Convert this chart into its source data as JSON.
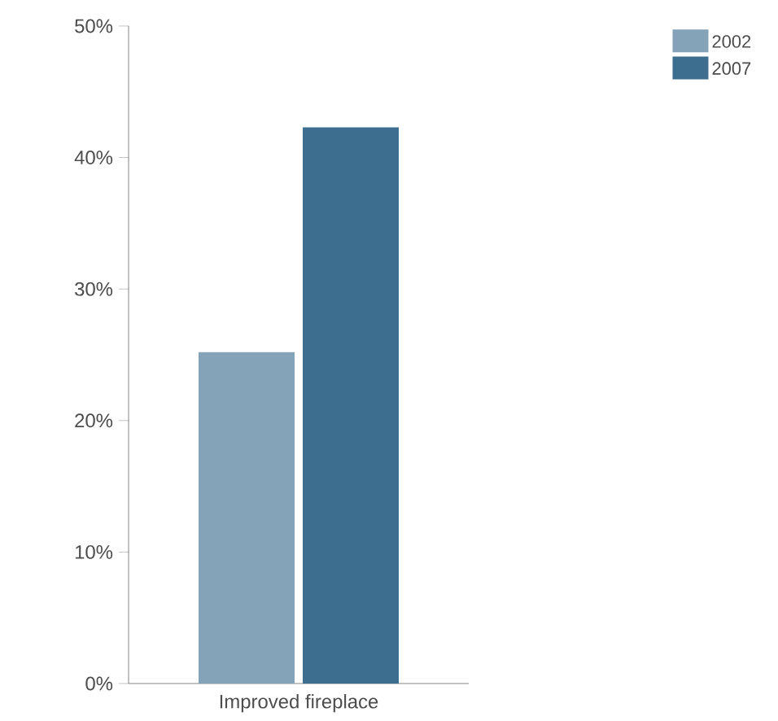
{
  "chart_data": {
    "type": "bar",
    "categories": [
      "Improved fireplace"
    ],
    "series": [
      {
        "name": "2002",
        "color": "#84a3b8",
        "values": [
          25.2
        ]
      },
      {
        "name": "2007",
        "color": "#3d6e8f",
        "values": [
          42.3
        ]
      }
    ],
    "ylim": [
      0,
      50
    ],
    "yticks": [
      {
        "value": 0,
        "label": "0%"
      },
      {
        "value": 10,
        "label": "10%"
      },
      {
        "value": 20,
        "label": "20%"
      },
      {
        "value": 30,
        "label": "30%"
      },
      {
        "value": 40,
        "label": "40%"
      },
      {
        "value": 50,
        "label": "50%"
      }
    ],
    "legend": "top right",
    "grid": false
  }
}
